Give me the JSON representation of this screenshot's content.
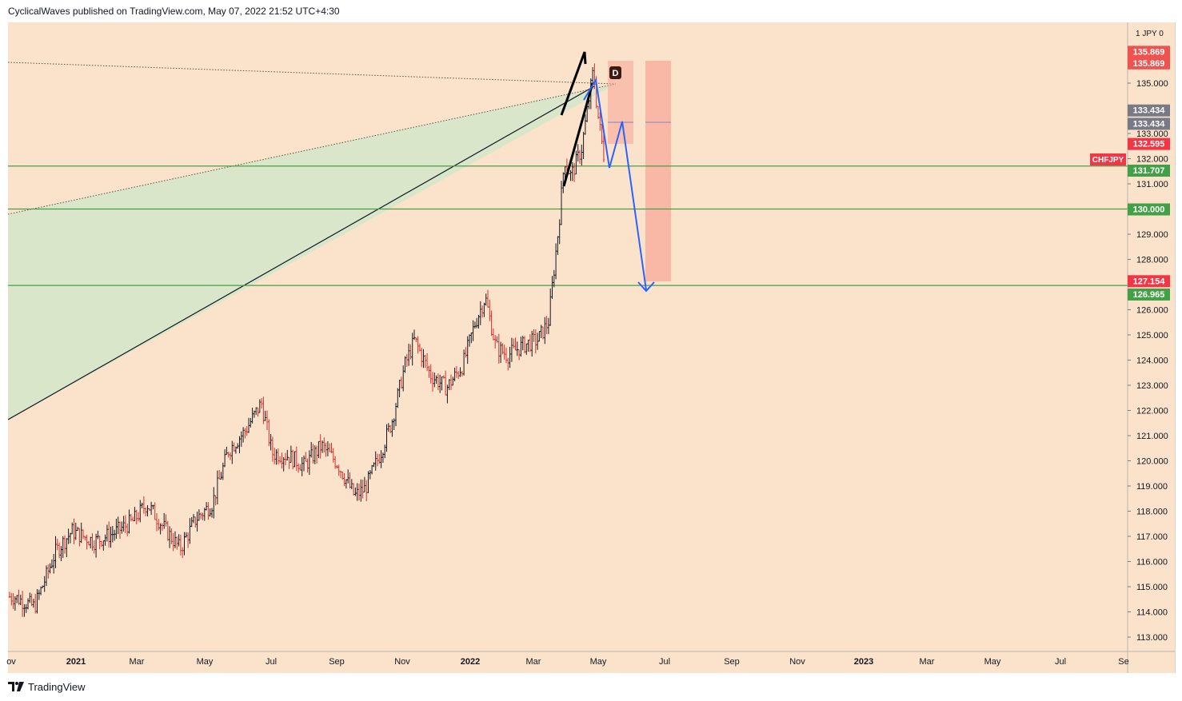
{
  "header": {
    "publisher_line": "CyclicalWaves published on TradingView.com, May 07, 2022 21:52 UTC+4:30"
  },
  "footer": {
    "brand": "TradingView"
  },
  "colors": {
    "background": "#fbe3cb",
    "up_bar": "#131722",
    "down_bar": "#d32f2f",
    "support_line": "#43a047",
    "projection": "#2962ff",
    "target_zone": "#f8a99a",
    "wedge_fill": "#d7e6c8"
  },
  "chart_data": {
    "type": "ohlc-bars",
    "symbol": "CHFJPY",
    "price_axis_header": "JPY",
    "y_range": [
      112.5,
      137.2
    ],
    "x_range_months": [
      "Nov 2020",
      "Sep 2023"
    ],
    "y_ticks": [
      "135.000",
      "133.000",
      "132.000",
      "131.000",
      "129.000",
      "128.000",
      "126.000",
      "125.000",
      "124.000",
      "123.000",
      "122.000",
      "121.000",
      "120.000",
      "119.000",
      "118.000",
      "117.000",
      "116.000",
      "115.000",
      "114.000",
      "113.000"
    ],
    "x_ticks": [
      "ov",
      "2021",
      "Mar",
      "May",
      "Jul",
      "Sep",
      "Nov",
      "2022",
      "Mar",
      "May",
      "Jul",
      "Sep",
      "Nov",
      "2023",
      "Mar",
      "May",
      "Jul",
      "Se"
    ],
    "price_labels": [
      {
        "text": "135.869",
        "price": 136.26,
        "color": "#ef5350"
      },
      {
        "text": "135.869",
        "price": 135.8,
        "color": "#ef5350"
      },
      {
        "text": "133.434",
        "price": 133.93,
        "color": "#787b86"
      },
      {
        "text": "133.434",
        "price": 133.4,
        "color": "#787b86"
      },
      {
        "text": "132.595",
        "price": 132.6,
        "color": "#f23645"
      },
      {
        "text": "131.707",
        "price": 131.54,
        "color": "#43a047"
      },
      {
        "text": "130.000",
        "price": 130.0,
        "color": "#43a047"
      },
      {
        "text": "127.154",
        "price": 127.15,
        "color": "#f23645"
      },
      {
        "text": "126.965",
        "price": 126.62,
        "color": "#43a047"
      }
    ],
    "symbol_tag": "CHFJPY",
    "horizontal_levels": [
      131.707,
      130.0,
      126.965
    ],
    "marker": "D",
    "price_path": [
      [
        "2020-11-01",
        114.6
      ],
      [
        "2020-11-20",
        114.2
      ],
      [
        "2020-12-10",
        116.4
      ],
      [
        "2020-12-25",
        117.2
      ],
      [
        "2021-01-15",
        116.8
      ],
      [
        "2021-02-01",
        117.1
      ],
      [
        "2021-02-20",
        117.6
      ],
      [
        "2021-03-05",
        118.3
      ],
      [
        "2021-03-20",
        117.4
      ],
      [
        "2021-04-05",
        116.5
      ],
      [
        "2021-04-20",
        117.7
      ],
      [
        "2021-05-05",
        118.3
      ],
      [
        "2021-05-20",
        120.4
      ],
      [
        "2021-06-05",
        121.2
      ],
      [
        "2021-06-20",
        122.3
      ],
      [
        "2021-06-30",
        120.3
      ],
      [
        "2021-07-15",
        120.2
      ],
      [
        "2021-07-30",
        119.8
      ],
      [
        "2021-08-15",
        120.6
      ],
      [
        "2021-08-30",
        119.9
      ],
      [
        "2021-09-15",
        118.6
      ],
      [
        "2021-09-25",
        118.9
      ],
      [
        "2021-10-10",
        120.4
      ],
      [
        "2021-10-20",
        121.6
      ],
      [
        "2021-11-01",
        123.8
      ],
      [
        "2021-11-10",
        124.8
      ],
      [
        "2021-11-25",
        123.4
      ],
      [
        "2021-12-10",
        122.9
      ],
      [
        "2021-12-25",
        123.8
      ],
      [
        "2022-01-05",
        125.4
      ],
      [
        "2022-01-15",
        126.5
      ],
      [
        "2022-01-25",
        124.5
      ],
      [
        "2022-02-05",
        124.2
      ],
      [
        "2022-02-20",
        124.6
      ],
      [
        "2022-03-05",
        124.8
      ],
      [
        "2022-03-15",
        125.5
      ],
      [
        "2022-03-25",
        129.5
      ],
      [
        "2022-03-30",
        132.0
      ],
      [
        "2022-04-05",
        131.3
      ],
      [
        "2022-04-15",
        132.4
      ],
      [
        "2022-04-22",
        134.4
      ],
      [
        "2022-04-26",
        135.5
      ],
      [
        "2022-04-30",
        133.8
      ],
      [
        "2022-05-05",
        132.3
      ],
      [
        "2022-05-07",
        131.9
      ]
    ],
    "projection_path": [
      [
        "2022-05-02",
        135.0
      ],
      [
        "2022-05-07",
        131.7
      ],
      [
        "2022-05-15",
        133.4
      ],
      [
        "2022-06-20",
        126.9
      ]
    ]
  }
}
